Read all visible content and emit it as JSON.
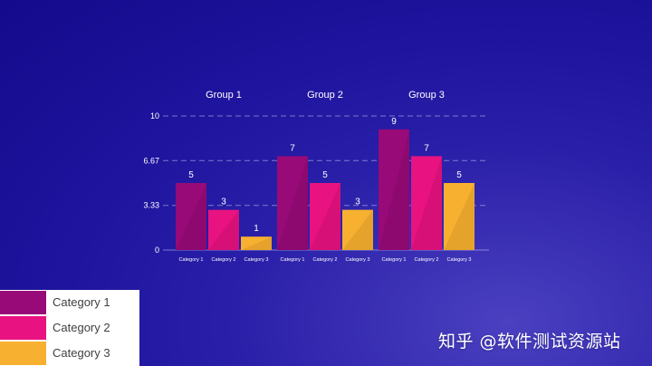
{
  "chart_data": {
    "type": "bar",
    "groups": [
      "Group 1",
      "Group 2",
      "Group 3"
    ],
    "series": [
      {
        "name": "Category 1",
        "values": [
          5,
          7,
          9
        ],
        "color": "#980a78"
      },
      {
        "name": "Category 2",
        "values": [
          3,
          5,
          7
        ],
        "color": "#e81280"
      },
      {
        "name": "Category 3",
        "values": [
          1,
          3,
          5
        ],
        "color": "#f8b030"
      }
    ],
    "ylim": [
      0,
      10
    ],
    "yticks": [
      "0",
      "3.33",
      "6.67",
      "10"
    ],
    "ytick_values": [
      0,
      3.33,
      6.67,
      10
    ],
    "bar_tick_labels": [
      "Category 1",
      "Category 2",
      "Category 3"
    ],
    "grid": true,
    "legend_position": "bottom-left"
  },
  "legend": {
    "items": [
      {
        "label": "Category 1",
        "color": "#980a78"
      },
      {
        "label": "Category 2",
        "color": "#e81280"
      },
      {
        "label": "Category 3",
        "color": "#f8b030"
      }
    ]
  },
  "watermark": {
    "text": "知乎 @软件测试资源站"
  }
}
